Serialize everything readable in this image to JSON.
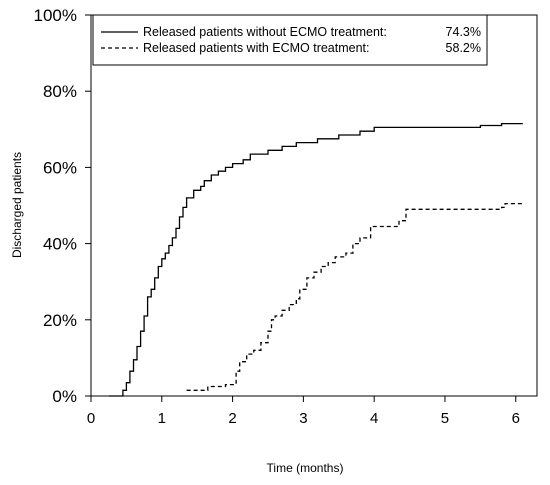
{
  "chart_data": {
    "type": "line",
    "title": "",
    "xlabel": "Time (months)",
    "ylabel": "Discharged patients",
    "xlim": [
      0,
      6.3
    ],
    "ylim": [
      0,
      100
    ],
    "x_ticks": [
      "0",
      "1",
      "2",
      "3",
      "4",
      "5",
      "6"
    ],
    "y_ticks": [
      "0%",
      "20%",
      "40%",
      "60%",
      "80%",
      "100%"
    ],
    "grid": false,
    "legend_position": "top-left",
    "series": [
      {
        "name": "Released patients without ECMO treatment:",
        "legend_value": "74.3%",
        "line_style": "solid",
        "color": "#000000",
        "points": [
          [
            0.25,
            0
          ],
          [
            0.42,
            0
          ],
          [
            0.45,
            1.5
          ],
          [
            0.5,
            3.5
          ],
          [
            0.55,
            6.5
          ],
          [
            0.6,
            9.5
          ],
          [
            0.65,
            13
          ],
          [
            0.7,
            17
          ],
          [
            0.75,
            21
          ],
          [
            0.8,
            26
          ],
          [
            0.85,
            28
          ],
          [
            0.9,
            31
          ],
          [
            0.95,
            34
          ],
          [
            1.0,
            36
          ],
          [
            1.05,
            37.5
          ],
          [
            1.1,
            39.5
          ],
          [
            1.15,
            41.5
          ],
          [
            1.2,
            44
          ],
          [
            1.25,
            47
          ],
          [
            1.3,
            49.5
          ],
          [
            1.35,
            52
          ],
          [
            1.45,
            54
          ],
          [
            1.55,
            55
          ],
          [
            1.6,
            56.5
          ],
          [
            1.7,
            58
          ],
          [
            1.8,
            59
          ],
          [
            1.9,
            60
          ],
          [
            2.0,
            61
          ],
          [
            2.15,
            62
          ],
          [
            2.25,
            63.5
          ],
          [
            2.5,
            64.5
          ],
          [
            2.7,
            65.5
          ],
          [
            2.9,
            66.5
          ],
          [
            3.2,
            67.5
          ],
          [
            3.5,
            68.5
          ],
          [
            3.8,
            69.5
          ],
          [
            4.0,
            70.5
          ],
          [
            4.5,
            70.5
          ],
          [
            5.0,
            70.5
          ],
          [
            5.5,
            71
          ],
          [
            5.8,
            71.5
          ],
          [
            6.1,
            71.5
          ]
        ]
      },
      {
        "name": "Released patients with ECMO treatment:",
        "legend_value": "58.2%",
        "line_style": "dashed",
        "color": "#000000",
        "points": [
          [
            1.35,
            1.5
          ],
          [
            1.6,
            1.5
          ],
          [
            1.65,
            2.5
          ],
          [
            1.8,
            2.5
          ],
          [
            1.9,
            3
          ],
          [
            2.0,
            3
          ],
          [
            2.05,
            6.5
          ],
          [
            2.1,
            9
          ],
          [
            2.2,
            11
          ],
          [
            2.3,
            12
          ],
          [
            2.4,
            14
          ],
          [
            2.5,
            17
          ],
          [
            2.55,
            20
          ],
          [
            2.6,
            21
          ],
          [
            2.7,
            22.5
          ],
          [
            2.8,
            24
          ],
          [
            2.9,
            25.5
          ],
          [
            2.95,
            28
          ],
          [
            3.05,
            31
          ],
          [
            3.15,
            32.5
          ],
          [
            3.25,
            34
          ],
          [
            3.35,
            35
          ],
          [
            3.45,
            36.5
          ],
          [
            3.6,
            37.5
          ],
          [
            3.7,
            40
          ],
          [
            3.8,
            41.5
          ],
          [
            3.95,
            44.5
          ],
          [
            4.2,
            44.5
          ],
          [
            4.35,
            46
          ],
          [
            4.45,
            49
          ],
          [
            5.0,
            49
          ],
          [
            5.8,
            49.5
          ],
          [
            5.85,
            50.5
          ],
          [
            6.1,
            50.5
          ]
        ]
      }
    ]
  }
}
